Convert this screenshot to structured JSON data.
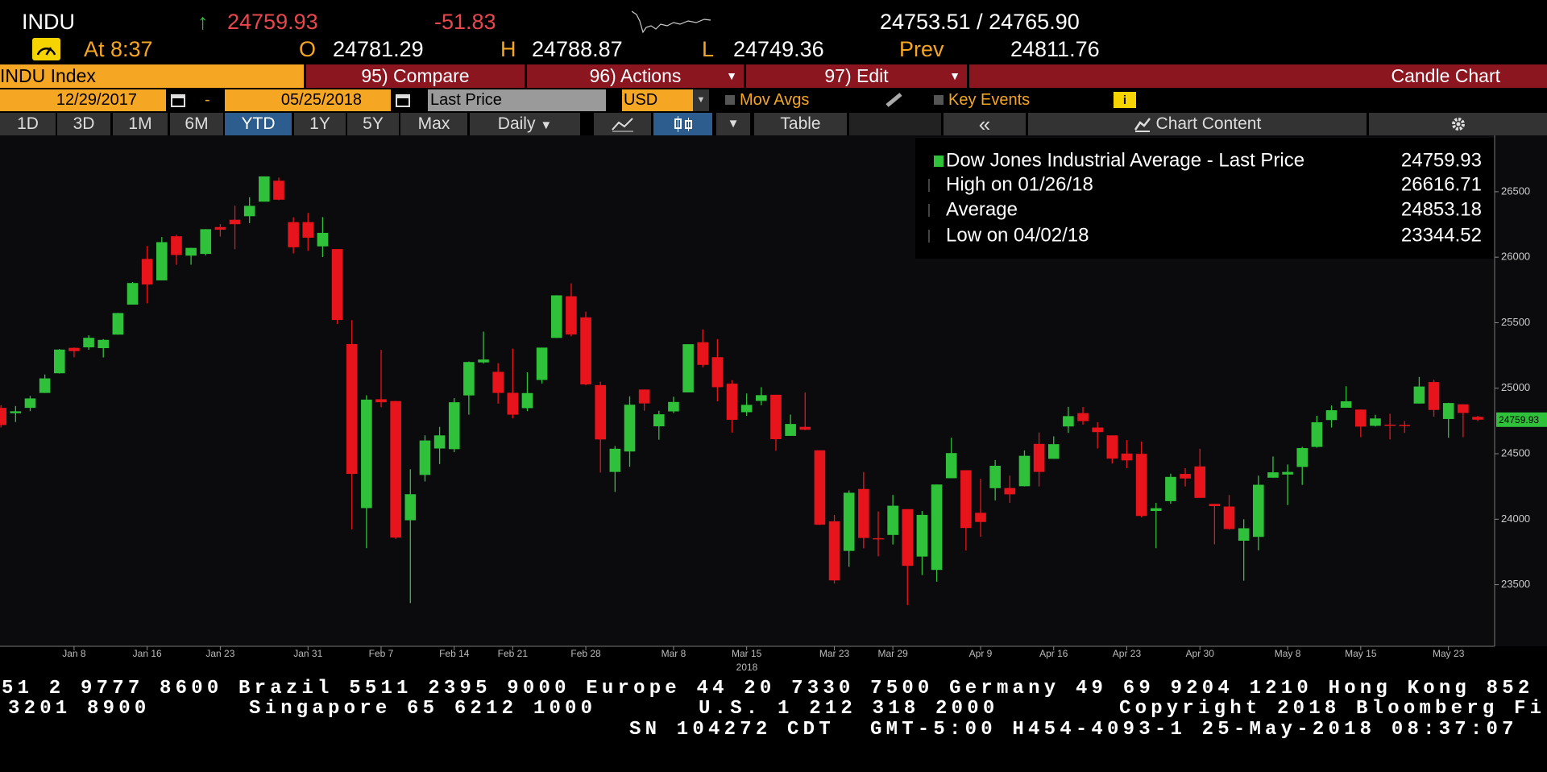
{
  "header": {
    "ticker": "INDU",
    "arrow": "↑",
    "last": "24759.93",
    "change": "-51.83",
    "bid_ask": "24753.51 / 24765.90",
    "at": "At 8:37",
    "open_label": "O",
    "open": "24781.29",
    "high_label": "H",
    "high": "24788.87",
    "low_label": "L",
    "low": "24749.36",
    "prev_label": "Prev",
    "prev": "24811.76"
  },
  "toolbar": {
    "security": "INDU Index",
    "compare": "95) Compare",
    "actions": "96) Actions",
    "edit": "97) Edit",
    "chart_kind": "Candle Chart",
    "start_date": "12/29/2017",
    "date_sep": "-",
    "end_date": "05/25/2018",
    "field": "Last Price",
    "currency": "USD",
    "mov_avgs": "Mov Avgs",
    "key_events": "Key Events",
    "periods": [
      "1D",
      "3D",
      "1M",
      "6M",
      "YTD",
      "1Y",
      "5Y",
      "Max"
    ],
    "frequency": "Daily",
    "table": "Table",
    "collapse": "«",
    "chart_content": "Chart Content"
  },
  "chart_data": {
    "type": "candlestick",
    "up_color": "#2fc13a",
    "down_color": "#e8141b",
    "grid": false,
    "categories": [
      null,
      null,
      null,
      null,
      null,
      "Jan 8",
      null,
      null,
      null,
      null,
      "Jan 16",
      null,
      null,
      null,
      null,
      "Jan 23",
      null,
      null,
      null,
      null,
      null,
      "Jan 31",
      null,
      null,
      null,
      null,
      "Feb 7",
      null,
      null,
      null,
      null,
      "Feb 14",
      null,
      null,
      null,
      "Feb 21",
      null,
      null,
      null,
      null,
      "Feb 28",
      null,
      null,
      null,
      null,
      null,
      "Mar 8",
      null,
      null,
      null,
      null,
      "Mar 15",
      null,
      null,
      null,
      null,
      null,
      "Mar 23",
      null,
      null,
      null,
      "Mar 29",
      null,
      null,
      null,
      null,
      null,
      "Apr 9",
      null,
      null,
      null,
      null,
      "Apr 16",
      null,
      null,
      null,
      null,
      "Apr 23",
      null,
      null,
      null,
      null,
      "Apr 30",
      null,
      null,
      null,
      null,
      null,
      "May 8",
      null,
      null,
      null,
      null,
      "May 15",
      null,
      null,
      null,
      null,
      null,
      "May 23",
      null,
      null
    ],
    "year_label": "2018",
    "open": [
      24850,
      24809,
      24850,
      24964,
      25114,
      25308,
      25312,
      25306,
      25409,
      25638,
      25987,
      25823,
      26160,
      26012,
      26025,
      26230,
      26286,
      26313,
      26424,
      26584,
      26268,
      26268,
      26083,
      26062,
      25337,
      24085,
      24916,
      24902,
      23992,
      24338,
      24540,
      24535,
      24945,
      25197,
      25125,
      24965,
      24848,
      25063,
      25384,
      25702,
      25541,
      25024,
      24361,
      24517,
      24990,
      24709,
      24823,
      24968,
      25351,
      25237,
      25035,
      24817,
      24903,
      24950,
      24636,
      24705,
      24526,
      23984,
      23758,
      24231,
      23855,
      23880,
      24077,
      23715,
      23613,
      24313,
      24374,
      24049,
      24237,
      24238,
      24252,
      24575,
      24461,
      24708,
      24810,
      24700,
      24640,
      24501,
      24499,
      24063,
      24138,
      24346,
      24403,
      24117,
      24097,
      23836,
      23865,
      24317,
      24341,
      24399,
      24552,
      24757,
      24851,
      24837,
      24713,
      24722,
      24720,
      24883,
      25047,
      24765,
      24877,
      24781.29
    ],
    "high": [
      24870,
      24864,
      24941,
      25105,
      25299,
      25311,
      25404,
      25375,
      25575,
      25810,
      26086,
      26154,
      26172,
      26072,
      26215,
      26253,
      26393,
      26458,
      26617,
      26608,
      26305,
      26338,
      26306,
      26062,
      25520,
      24946,
      25293,
      24903,
      24382,
      24640,
      24705,
      24924,
      25204,
      25432,
      25191,
      25302,
      25122,
      25310,
      25710,
      25800,
      25585,
      25050,
      24559,
      24937,
      24990,
      24828,
      24935,
      25336,
      25449,
      25375,
      25061,
      24960,
      25008,
      24950,
      24799,
      24967,
      24526,
      24033,
      24220,
      24360,
      24060,
      24185,
      24077,
      24063,
      24265,
      24622,
      24374,
      24309,
      24452,
      24333,
      24525,
      24662,
      24633,
      24858,
      24857,
      24740,
      24640,
      24604,
      24593,
      24125,
      24348,
      24389,
      24538,
      24117,
      24185,
      24000,
      24333,
      24479,
      24418,
      24553,
      24789,
      24868,
      25015,
      24837,
      24797,
      24805,
      24750,
      25086,
      25064,
      24889,
      24877,
      24788.87
    ],
    "low": [
      24700,
      24742,
      24825,
      24963,
      25112,
      25236,
      25294,
      25235,
      25409,
      25638,
      25648,
      25823,
      25942,
      25943,
      26014,
      26158,
      26061,
      26260,
      26424,
      26435,
      26029,
      26049,
      26001,
      25490,
      23923,
      23779,
      24855,
      23849,
      23360,
      24288,
      24421,
      24512,
      24798,
      25188,
      24882,
      24770,
      24825,
      25036,
      25384,
      25396,
      25022,
      24356,
      24208,
      24400,
      24828,
      24607,
      24810,
      24968,
      25160,
      24900,
      24661,
      24789,
      24870,
      24522,
      24636,
      24679,
      23956,
      23509,
      23637,
      23778,
      23717,
      23807,
      23344.52,
      23574,
      23523,
      24313,
      23761,
      23866,
      24143,
      24125,
      24250,
      24250,
      24461,
      24659,
      24722,
      24540,
      24425,
      24390,
      24014,
      23779,
      24118,
      24250,
      24163,
      23808,
      23920,
      23531,
      23762,
      24317,
      24108,
      24262,
      24546,
      24700,
      24851,
      24626,
      24707,
      24609,
      24659,
      24883,
      24783,
      24622,
      24626,
      24749.36
    ],
    "close": [
      24719,
      24824,
      24922,
      25075,
      25295,
      25283,
      25385,
      25369,
      25574,
      25803,
      25792,
      26115,
      26017,
      26071,
      26214,
      26210,
      26252,
      26392,
      26617,
      26439,
      26076,
      26149,
      26186,
      25521,
      24346,
      24913,
      24893,
      23860,
      24191,
      24601,
      24640,
      24893,
      25200,
      25219,
      24964,
      24798,
      24963,
      25310,
      25709,
      25410,
      25029,
      24609,
      24538,
      24874,
      24884,
      24801,
      24895,
      25336,
      25178,
      25008,
      24759,
      24873,
      24947,
      24611,
      24727,
      24683,
      23958,
      23533,
      24202,
      23857,
      23849,
      24103,
      23644,
      24033,
      24265,
      24505,
      23933,
      23979,
      24408,
      24190,
      24484,
      24361,
      24573,
      24787,
      24749,
      24665,
      24463,
      24449,
      24025,
      24084,
      24323,
      24311,
      24163,
      24100,
      23925,
      23931,
      24263,
      24358,
      24361,
      24543,
      24740,
      24832,
      24900,
      24707,
      24769,
      24714,
      24715,
      25013,
      24834,
      24887,
      24811,
      24759.93
    ],
    "ylim": [
      23030,
      26930
    ],
    "yticks": [
      23500,
      24000,
      24500,
      25000,
      25500,
      26000,
      26500
    ],
    "legend": [
      {
        "label": "Dow Jones Industrial Average - Last Price",
        "value": 24759.93
      },
      {
        "label": "High on 01/26/18",
        "value": 26616.71
      },
      {
        "label": "Average",
        "value": 24853.18
      },
      {
        "label": "Low on 04/02/18",
        "value": 23344.52
      }
    ]
  },
  "footer": {
    "line1": "51 2 9777 8600 Brazil 5511 2395 9000 Europe 44 20 7330 7500 Germany 49 69 9204 1210 Hong Kong 852",
    "line2": [
      "3201 8900",
      "Singapore 65 6212 1000",
      "U.S. 1 212 318 2000",
      "Copyright 2018 Bloomberg Fi"
    ],
    "line3": [
      "SN 104272 CDT",
      "GMT-5:00 H454-4093-1 25-May-2018 08:37:07"
    ]
  }
}
